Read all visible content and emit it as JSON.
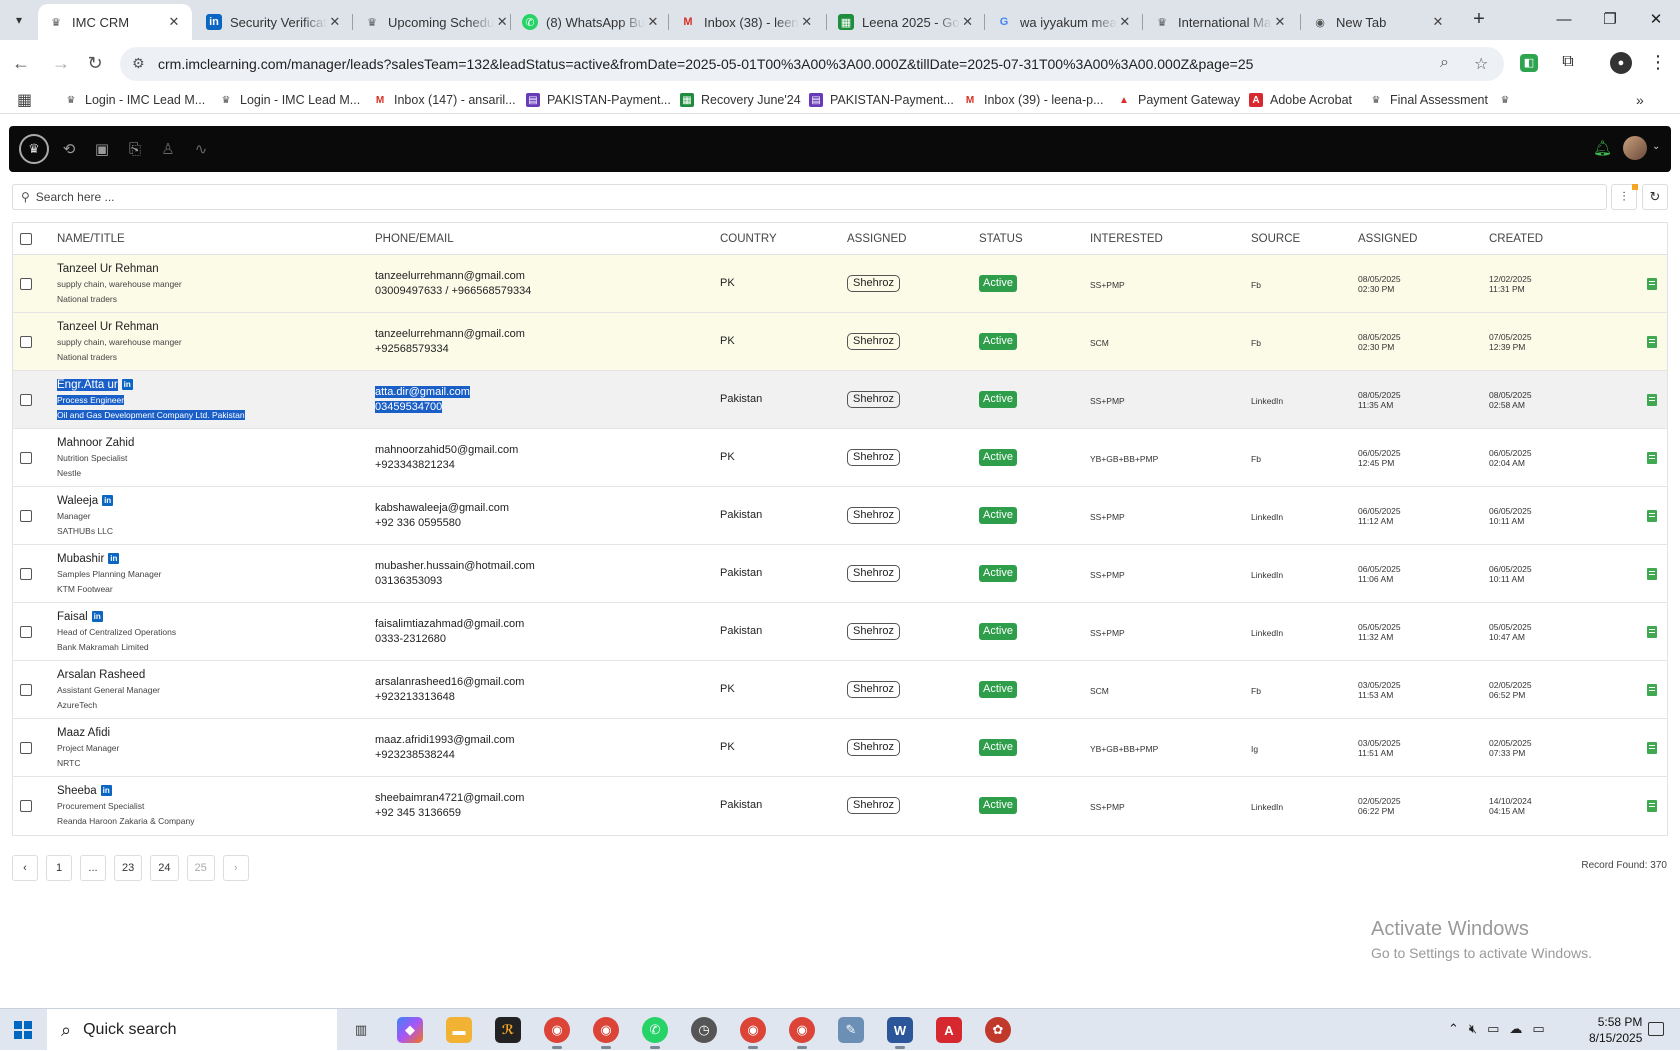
{
  "browser": {
    "tabs": [
      {
        "title": "IMC CRM",
        "active": true,
        "icon": "imc-icon"
      },
      {
        "title": "Security Verificat",
        "icon": "linkedin-icon"
      },
      {
        "title": "Upcoming Schedu",
        "icon": "imc-icon"
      },
      {
        "title": "(8) WhatsApp Bu",
        "icon": "whatsapp-icon"
      },
      {
        "title": "Inbox (38) - leen",
        "icon": "gmail-icon"
      },
      {
        "title": "Leena 2025 - Go",
        "icon": "sheets-icon"
      },
      {
        "title": "wa iyyakum mea",
        "icon": "google-icon"
      },
      {
        "title": "International Ma",
        "icon": "imc-icon"
      },
      {
        "title": "New Tab",
        "icon": "chrome-icon"
      }
    ],
    "url": "crm.imclearning.com/manager/leads?salesTeam=132&leadStatus=active&fromDate=2025-05-01T00%3A00%3A00.000Z&tillDate=2025-07-31T00%3A00%3A00.000Z&page=25",
    "bookmarks": [
      "Login - IMC Lead M...",
      "Login - IMC Lead M...",
      "Inbox (147) - ansaril...",
      "PAKISTAN-Payment...",
      "Recovery June'24",
      "PAKISTAN-Payment...",
      "Inbox (39) - leena-p...",
      "Payment Gateway",
      "Adobe Acrobat",
      "Final Assessment"
    ]
  },
  "search": {
    "placeholder": "Search here ..."
  },
  "table": {
    "headers": {
      "name": "NAME/TITLE",
      "contact": "PHONE/EMAIL",
      "country": "COUNTRY",
      "assigned_to": "ASSIGNED",
      "status": "STATUS",
      "interested": "INTERESTED",
      "source": "SOURCE",
      "assigned_at": "ASSIGNED",
      "created": "CREATED"
    },
    "rows": [
      {
        "name": "Tanzeel Ur Rehman",
        "title": "supply chain, warehouse manger",
        "company": "National traders",
        "email": "tanzeelurrehmann@gmail.com",
        "phone": "03009497633 / +966568579334",
        "country": "PK",
        "assigned_to": "Shehroz",
        "status": "Active",
        "interested": "SS+PMP",
        "source": "Fb",
        "assigned_date": "08/05/2025",
        "assigned_time": "02:30 PM",
        "created_date": "12/02/2025",
        "created_time": "11:31 PM"
      },
      {
        "name": "Tanzeel Ur Rehman",
        "title": "supply chain, warehouse manger",
        "company": "National traders",
        "email": "tanzeelurrehmann@gmail.com",
        "phone": "+92568579334",
        "country": "PK",
        "assigned_to": "Shehroz",
        "status": "Active",
        "interested": "SCM",
        "source": "Fb",
        "assigned_date": "08/05/2025",
        "assigned_time": "02:30 PM",
        "created_date": "07/05/2025",
        "created_time": "12:39 PM"
      },
      {
        "name": "Engr.Atta ur",
        "title": "Process Engineer",
        "company": "Oil and Gas Development Company Ltd. Pakistan",
        "email": "atta.dir@gmail.com",
        "phone": "03459534700",
        "country": "Pakistan",
        "assigned_to": "Shehroz",
        "status": "Active",
        "interested": "SS+PMP",
        "source": "LinkedIn",
        "assigned_date": "08/05/2025",
        "assigned_time": "11:35 AM",
        "created_date": "08/05/2025",
        "created_time": "02:58 AM"
      },
      {
        "name": "Mahnoor Zahid",
        "title": "Nutrition Specialist",
        "company": "Nestle",
        "email": "mahnoorzahid50@gmail.com",
        "phone": "+923343821234",
        "country": "PK",
        "assigned_to": "Shehroz",
        "status": "Active",
        "interested": "YB+GB+BB+PMP",
        "source": "Fb",
        "assigned_date": "06/05/2025",
        "assigned_time": "12:45 PM",
        "created_date": "06/05/2025",
        "created_time": "02:04 AM"
      },
      {
        "name": "Waleeja",
        "title": "Manager",
        "company": "SATHUBs LLC",
        "email": "kabshawaleeja@gmail.com",
        "phone": "+92 336 0595580",
        "country": "Pakistan",
        "assigned_to": "Shehroz",
        "status": "Active",
        "interested": "SS+PMP",
        "source": "LinkedIn",
        "assigned_date": "06/05/2025",
        "assigned_time": "11:12 AM",
        "created_date": "06/05/2025",
        "created_time": "10:11 AM"
      },
      {
        "name": "Mubashir",
        "title": "Samples Planning Manager",
        "company": "KTM Footwear",
        "email": "mubasher.hussain@hotmail.com",
        "phone": "03136353093",
        "country": "Pakistan",
        "assigned_to": "Shehroz",
        "status": "Active",
        "interested": "SS+PMP",
        "source": "LinkedIn",
        "assigned_date": "06/05/2025",
        "assigned_time": "11:06 AM",
        "created_date": "06/05/2025",
        "created_time": "10:11 AM"
      },
      {
        "name": "Faisal",
        "title": "Head of Centralized Operations",
        "company": "Bank Makramah Limited",
        "email": "faisalimtiazahmad@gmail.com",
        "phone": "0333-2312680",
        "country": "Pakistan",
        "assigned_to": "Shehroz",
        "status": "Active",
        "interested": "SS+PMP",
        "source": "LinkedIn",
        "assigned_date": "05/05/2025",
        "assigned_time": "11:32 AM",
        "created_date": "05/05/2025",
        "created_time": "10:47 AM"
      },
      {
        "name": "Arsalan Rasheed",
        "title": "Assistant General Manager",
        "company": "AzureTech",
        "email": "arsalanrasheed16@gmail.com",
        "phone": "+923213313648",
        "country": "PK",
        "assigned_to": "Shehroz",
        "status": "Active",
        "interested": "SCM",
        "source": "Fb",
        "assigned_date": "03/05/2025",
        "assigned_time": "11:53 AM",
        "created_date": "02/05/2025",
        "created_time": "06:52 PM"
      },
      {
        "name": "Maaz Afidi",
        "title": "Project Manager",
        "company": "NRTC",
        "email": "maaz.afridi1993@gmail.com",
        "phone": "+923238538244",
        "country": "PK",
        "assigned_to": "Shehroz",
        "status": "Active",
        "interested": "YB+GB+BB+PMP",
        "source": "Ig",
        "assigned_date": "03/05/2025",
        "assigned_time": "11:51 AM",
        "created_date": "02/05/2025",
        "created_time": "07:33 PM"
      },
      {
        "name": "Sheeba",
        "title": "Procurement Specialist",
        "company": "Reanda Haroon Zakaria & Company",
        "email": "sheebaimran4721@gmail.com",
        "phone": "+92 345 3136659",
        "country": "Pakistan",
        "assigned_to": "Shehroz",
        "status": "Active",
        "interested": "SS+PMP",
        "source": "LinkedIn",
        "assigned_date": "02/05/2025",
        "assigned_time": "06:22 PM",
        "created_date": "14/10/2024",
        "created_time": "04:15 AM"
      }
    ]
  },
  "pagination": {
    "pages": [
      "1",
      "...",
      "23",
      "24",
      "25"
    ],
    "current": "25"
  },
  "record_found": "Record Found: 370",
  "watermark": {
    "title": "Activate Windows",
    "subtitle": "Go to Settings to activate Windows."
  },
  "taskbar": {
    "search_label": "Quick search",
    "time": "5:58 PM",
    "date": "8/15/2025"
  },
  "colors": {
    "status_active": "#2e9e4a",
    "appbar": "#0a0a0a",
    "linkedin": "#0a66c2",
    "selection": "#1a5fc7"
  }
}
